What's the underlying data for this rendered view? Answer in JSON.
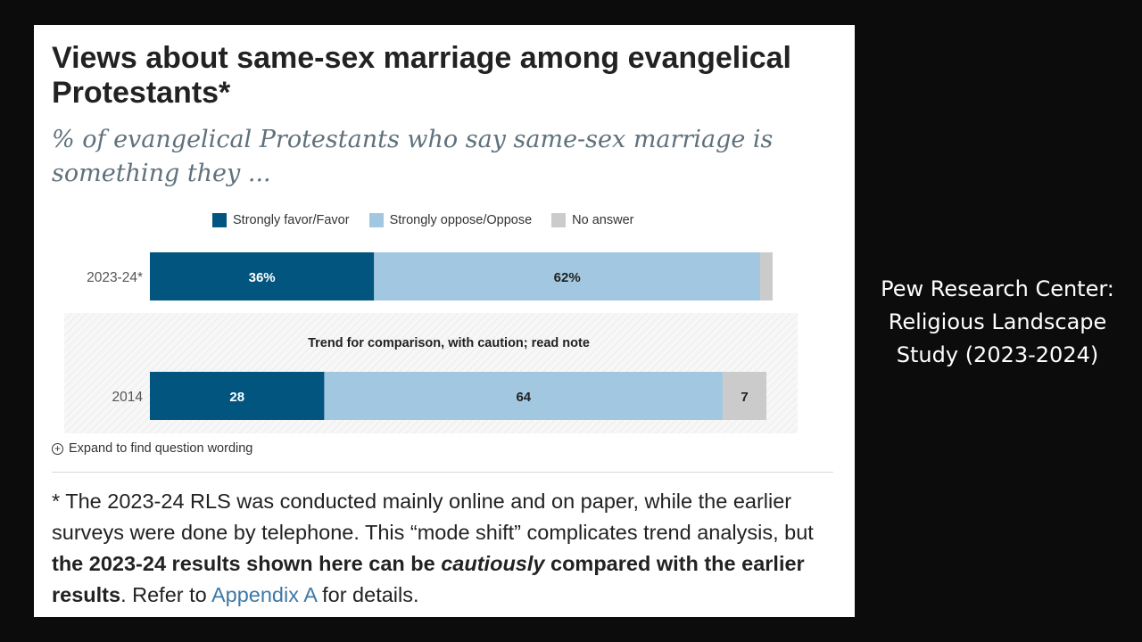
{
  "title": "Views about same-sex marriage among evangelical Protestants*",
  "subtitle": "% of evangelical Protestants who say same-sex marriage is something they ...",
  "colors": {
    "favor": "#02557e",
    "oppose": "#a1c8e0",
    "no_answer": "#cbcbcb"
  },
  "chart_data": {
    "type": "bar",
    "orientation": "horizontal-stacked",
    "categories": [
      "2023-24*",
      "2014"
    ],
    "series": [
      {
        "name": "Strongly favor/Favor",
        "values": [
          36,
          28
        ],
        "labels": [
          "36%",
          "28"
        ]
      },
      {
        "name": "Strongly oppose/Oppose",
        "values": [
          62,
          64
        ],
        "labels": [
          "62%",
          "64"
        ]
      },
      {
        "name": "No answer",
        "values": [
          2,
          7
        ],
        "labels": [
          "",
          "7"
        ]
      }
    ],
    "xlim": [
      0,
      100
    ],
    "trend_note": "Trend for comparison, with caution; read note",
    "legend_position": "top"
  },
  "expand_label": "Expand to find question wording",
  "note": {
    "part1": "* The 2023-24 RLS was conducted mainly online and on paper, while the earlier surveys were done by telephone. This “mode shift” complicates trend analysis, but ",
    "bold1": "the 2023-24 results shown here can be ",
    "bold_italic": "cautiously",
    "bold2": " compared with the earlier results",
    "part2": ". Refer to ",
    "link": "Appendix A",
    "part3": " for details."
  },
  "source_text": "Pew Research Center: Religious Landscape Study (2023-2024)"
}
